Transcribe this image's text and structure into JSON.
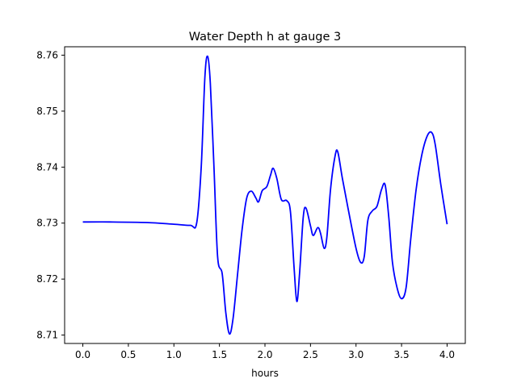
{
  "chart_data": {
    "type": "line",
    "title": "Water Depth h at gauge 3",
    "xlabel": "hours",
    "ylabel": "",
    "xlim": [
      -0.2,
      4.2
    ],
    "ylim": [
      8.7085,
      8.7615
    ],
    "xticks": [
      0.0,
      0.5,
      1.0,
      1.5,
      2.0,
      2.5,
      3.0,
      3.5,
      4.0
    ],
    "xtick_labels": [
      "0.0",
      "0.5",
      "1.0",
      "1.5",
      "2.0",
      "2.5",
      "3.0",
      "3.5",
      "4.0"
    ],
    "yticks": [
      8.71,
      8.72,
      8.73,
      8.74,
      8.75,
      8.76
    ],
    "ytick_labels": [
      "8.71",
      "8.72",
      "8.73",
      "8.74",
      "8.75",
      "8.76"
    ],
    "grid": false,
    "series": [
      {
        "color": "#0000ff",
        "points": [
          [
            0.0,
            8.7302
          ],
          [
            0.3,
            8.7302
          ],
          [
            0.7,
            8.7301
          ],
          [
            1.0,
            8.7298
          ],
          [
            1.18,
            8.7296
          ],
          [
            1.25,
            8.73
          ],
          [
            1.3,
            8.74
          ],
          [
            1.34,
            8.756
          ],
          [
            1.37,
            8.7598
          ],
          [
            1.4,
            8.755
          ],
          [
            1.44,
            8.74
          ],
          [
            1.48,
            8.724
          ],
          [
            1.53,
            8.721
          ],
          [
            1.57,
            8.714
          ],
          [
            1.61,
            8.7102
          ],
          [
            1.65,
            8.713
          ],
          [
            1.7,
            8.721
          ],
          [
            1.75,
            8.729
          ],
          [
            1.8,
            8.7345
          ],
          [
            1.85,
            8.7357
          ],
          [
            1.9,
            8.7345
          ],
          [
            1.93,
            8.7338
          ],
          [
            1.97,
            8.7358
          ],
          [
            2.02,
            8.7365
          ],
          [
            2.06,
            8.7385
          ],
          [
            2.09,
            8.7398
          ],
          [
            2.13,
            8.738
          ],
          [
            2.18,
            8.7342
          ],
          [
            2.24,
            8.734
          ],
          [
            2.28,
            8.732
          ],
          [
            2.32,
            8.722
          ],
          [
            2.35,
            8.716
          ],
          [
            2.38,
            8.721
          ],
          [
            2.42,
            8.731
          ],
          [
            2.45,
            8.7327
          ],
          [
            2.5,
            8.7295
          ],
          [
            2.53,
            8.7278
          ],
          [
            2.58,
            8.7292
          ],
          [
            2.61,
            8.7282
          ],
          [
            2.65,
            8.7255
          ],
          [
            2.68,
            8.7275
          ],
          [
            2.72,
            8.736
          ],
          [
            2.77,
            8.742
          ],
          [
            2.8,
            8.7427
          ],
          [
            2.85,
            8.738
          ],
          [
            2.92,
            8.732
          ],
          [
            3.0,
            8.7255
          ],
          [
            3.05,
            8.723
          ],
          [
            3.09,
            8.724
          ],
          [
            3.13,
            8.7305
          ],
          [
            3.18,
            8.7322
          ],
          [
            3.23,
            8.733
          ],
          [
            3.28,
            8.736
          ],
          [
            3.32,
            8.7368
          ],
          [
            3.36,
            8.731
          ],
          [
            3.4,
            8.723
          ],
          [
            3.45,
            8.7185
          ],
          [
            3.5,
            8.7165
          ],
          [
            3.55,
            8.7185
          ],
          [
            3.6,
            8.727
          ],
          [
            3.66,
            8.736
          ],
          [
            3.72,
            8.742
          ],
          [
            3.78,
            8.7455
          ],
          [
            3.83,
            8.7462
          ],
          [
            3.87,
            8.744
          ],
          [
            3.93,
            8.737
          ],
          [
            4.0,
            8.7298
          ]
        ]
      }
    ]
  }
}
